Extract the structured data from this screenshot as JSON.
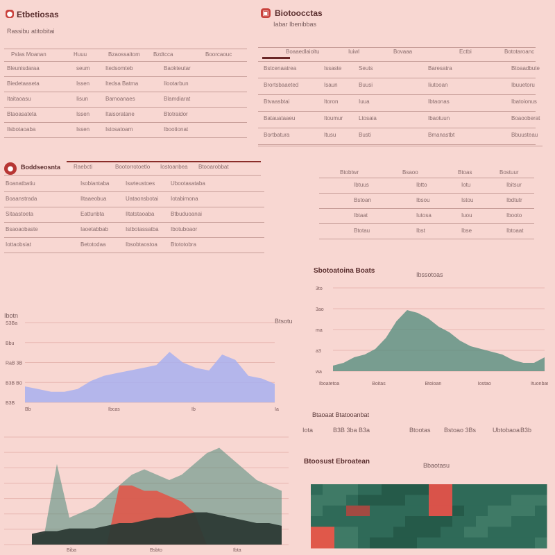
{
  "colors": {
    "background": "#f8d7d2",
    "accent": "#c9413c",
    "blue_area": "#a8b0f0",
    "teal_area": "#4d8a7a",
    "dark_area": "#2c3a35",
    "red_area": "#e0584a"
  },
  "icons": {
    "top_left_logo": "record-icon",
    "top_mid_logo": "app-icon",
    "mid_left_logo": "record-icon"
  },
  "top_left": {
    "title": "Etbetiosas",
    "subtitle": "Rassibu atitobitai",
    "columns": [
      "Pslas Moanan",
      "Huuu",
      "Bzaossaitom",
      "Bzdtcca",
      "Boorcaouc"
    ],
    "rows": [
      [
        "Bleunisdaraa",
        "seum",
        "Itedsomteb",
        "Baokteutar"
      ],
      [
        "Biedetaaseta",
        "Issen",
        "Itedsa Batma",
        "Ilootarbun"
      ],
      [
        "Itaitaoasu",
        "Iisun",
        "Bamoanaes",
        "Blamdiarat"
      ],
      [
        "Btaoasateta",
        "Issen",
        "Itaisoratane",
        "Btotraidor"
      ],
      [
        "Ilsbotaoaba",
        "Issen",
        "Istosatoarn",
        "Ibootionat"
      ]
    ]
  },
  "top_right": {
    "title": "Biotoocctas",
    "subtitle": "Iabar Ibenibbas",
    "columns": [
      "Boaaedlaioltu",
      "Iuiwl",
      "Bovaaa",
      "Ectbi",
      "Bototaroanc"
    ],
    "rows": [
      [
        "Bstcenaatrea",
        "Issaste",
        "Seuts",
        "Baresatra",
        "Btoaadbute"
      ],
      [
        "Brortsbaaeted",
        "Isaun",
        "Buusi",
        "Iiutooan",
        "Ibuuetoru"
      ],
      [
        "Btvaasbtai",
        "Itoron",
        "Iuua",
        "Ibtaonas",
        "Ibatoionus"
      ],
      [
        "Batauataaeu",
        "Itoumur",
        "Ltosaia",
        "Ibaotuun",
        "Boaooberat"
      ],
      [
        "Bortbatura",
        "Itusu",
        "Busti",
        "Bmanastbt",
        "Bbuusteau"
      ]
    ]
  },
  "mid_left": {
    "title": "Boddseosnta",
    "header_cells": [
      "Raebcti",
      "Bootorrotoetlo",
      "Iostoanbea",
      "Btooarobbat"
    ],
    "rows": [
      [
        "Boanatbatiu",
        "Isobiantaba",
        "Iswteustoes",
        "Ubootasataba"
      ],
      [
        "Boaanstrada",
        "Iltaaeobua",
        "Uataonsbotai",
        "Iotabimona"
      ],
      [
        "Sitaastoeta",
        "Eattunbta",
        "Iltatstaoaba",
        "Btbuduoanai"
      ],
      [
        "Bsaoaobaste",
        "Iaoetabbab",
        "Istbotassatba",
        "Ibotuboaor"
      ],
      [
        "Iottaobsiat",
        "Betotodaa",
        "Ibsobtaostoa",
        "Btototobra"
      ]
    ]
  },
  "mid_right": {
    "columns": [
      "Btobtwr",
      "Bsaoo",
      "Btoas",
      "Bostuur"
    ],
    "rows": [
      [
        "Ibtuus",
        "Ibtto",
        "Iotu",
        "Ibitsur"
      ],
      [
        "Bstoan",
        "Ibsou",
        "Istou",
        "Ibdtutr"
      ],
      [
        "Ibtaat",
        "Iutosa",
        "Iuou",
        "Ibooto"
      ],
      [
        "Btotau",
        "Ibst",
        "Ibse",
        "Ibtoaat"
      ]
    ]
  },
  "teal_chart": {
    "title": "Sbotoatoina Boats",
    "legend": "Ibssotoas",
    "chart_data": {
      "type": "area",
      "x": [
        0,
        1,
        2,
        3,
        4,
        5,
        6,
        7,
        8,
        9,
        10,
        11,
        12,
        13,
        14,
        15,
        16,
        17,
        18,
        19,
        20
      ],
      "values": [
        2,
        3,
        5,
        6,
        8,
        12,
        18,
        22,
        21,
        19,
        16,
        14,
        11,
        9,
        8,
        7,
        6,
        4,
        3,
        3,
        5
      ],
      "ylim": [
        0,
        30
      ],
      "yticks": [
        "3to",
        "3ao",
        "ma",
        "a3",
        "wa"
      ],
      "xticks": [
        "Iboatetoa",
        "Boitas",
        "Btoioan",
        "Iostao",
        "Ituonban"
      ]
    }
  },
  "blue_chart": {
    "title": "Ibotn",
    "legend": "Btsotu",
    "chart_data": {
      "type": "area",
      "x": [
        0,
        1,
        2,
        3,
        4,
        5,
        6,
        7,
        8,
        9,
        10,
        11,
        12,
        13,
        14,
        15,
        16,
        17,
        18,
        19
      ],
      "values": [
        6,
        5,
        4,
        4,
        5,
        8,
        10,
        11,
        12,
        13,
        14,
        19,
        15,
        13,
        12,
        18,
        16,
        10,
        9,
        7
      ],
      "ylim": [
        0,
        30
      ],
      "yticks": [
        "S3Ba",
        "Bbu",
        "RaB 3B",
        "B3B B0",
        "B3B"
      ],
      "xticks": [
        "Bb",
        "Ibcas",
        "Ib",
        "Ia"
      ]
    }
  },
  "stats": {
    "label": "Btaoaat Btatooanbat",
    "items": [
      {
        "label": "Iota",
        "value": "B3B 3ba B3a"
      },
      {
        "label": "Btootas",
        "value": "Bstoao 3Bs"
      },
      {
        "label": "Ubtobaoa",
        "value": "B3b"
      }
    ]
  },
  "bottom_left": {
    "chart_data": {
      "type": "area",
      "x": [
        0,
        1,
        2,
        3,
        4,
        5,
        6,
        7,
        8,
        9,
        10,
        11,
        12,
        13,
        14,
        15,
        16,
        17,
        18,
        19,
        20
      ],
      "series": [
        {
          "values": [
            3,
            4,
            30,
            10,
            12,
            14,
            18,
            22,
            26,
            28,
            26,
            24,
            26,
            30,
            34,
            36,
            32,
            28,
            24,
            22,
            20
          ]
        },
        {
          "values": [
            0,
            0,
            0,
            0,
            0,
            0,
            0,
            22,
            22,
            20,
            20,
            18,
            16,
            12,
            0,
            0,
            0,
            0,
            0,
            0,
            0
          ]
        },
        {
          "values": [
            4,
            5,
            5,
            6,
            6,
            6,
            7,
            8,
            8,
            9,
            10,
            10,
            11,
            12,
            12,
            11,
            10,
            9,
            8,
            8,
            7
          ]
        }
      ],
      "ylim": [
        0,
        40
      ],
      "xticks": [
        "Biba",
        "Bsbto",
        "Ibta"
      ]
    }
  },
  "bottom_right": {
    "title": "Btoosust Ebroatean",
    "legend": "Bbaotasu",
    "chart_data": {
      "type": "heatmap",
      "rows": 6,
      "cols": 20
    }
  }
}
